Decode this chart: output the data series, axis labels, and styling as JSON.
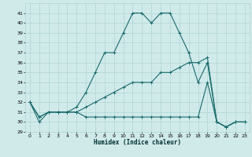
{
  "xlabel": "Humidex (Indice chaleur)",
  "xlim": [
    -0.5,
    23.5
  ],
  "ylim": [
    29,
    42
  ],
  "yticks": [
    29,
    30,
    31,
    32,
    33,
    34,
    35,
    36,
    37,
    38,
    39,
    40,
    41
  ],
  "xticks": [
    0,
    1,
    2,
    3,
    4,
    5,
    6,
    7,
    8,
    9,
    10,
    11,
    12,
    13,
    14,
    15,
    16,
    17,
    18,
    19,
    20,
    21,
    22,
    23
  ],
  "bg_color": "#d0eaea",
  "grid_color": "#b0d4d4",
  "line_color": "#1a6b6b",
  "line1_x": [
    0,
    1,
    2,
    3,
    4,
    5,
    6,
    7,
    8,
    9,
    10,
    11,
    12,
    13,
    14,
    15,
    16,
    17,
    18,
    19,
    20,
    21,
    22,
    23
  ],
  "line1_y": [
    32,
    30,
    31,
    31,
    31,
    31.5,
    33,
    35,
    37,
    37,
    39,
    41,
    41,
    40,
    41,
    41,
    39,
    37,
    34,
    36,
    30,
    29.5,
    30,
    30
  ],
  "line2_x": [
    0,
    1,
    2,
    3,
    4,
    5,
    6,
    7,
    8,
    9,
    10,
    11,
    12,
    13,
    14,
    15,
    16,
    17,
    18,
    19,
    20,
    21,
    22,
    23
  ],
  "line2_y": [
    32,
    30.5,
    31,
    31,
    31,
    31,
    31.5,
    32,
    32.5,
    33,
    33.5,
    34,
    34,
    34,
    35,
    35,
    35.5,
    36,
    36,
    36.5,
    30,
    29.5,
    30,
    30
  ],
  "line3_x": [
    0,
    1,
    2,
    3,
    4,
    5,
    6,
    7,
    8,
    9,
    10,
    11,
    12,
    13,
    14,
    15,
    16,
    17,
    18,
    19,
    20,
    21,
    22,
    23
  ],
  "line3_y": [
    32,
    30.5,
    31,
    31,
    31,
    31,
    30.5,
    30.5,
    30.5,
    30.5,
    30.5,
    30.5,
    30.5,
    30.5,
    30.5,
    30.5,
    30.5,
    30.5,
    30.5,
    34,
    30,
    29.5,
    30,
    30
  ]
}
